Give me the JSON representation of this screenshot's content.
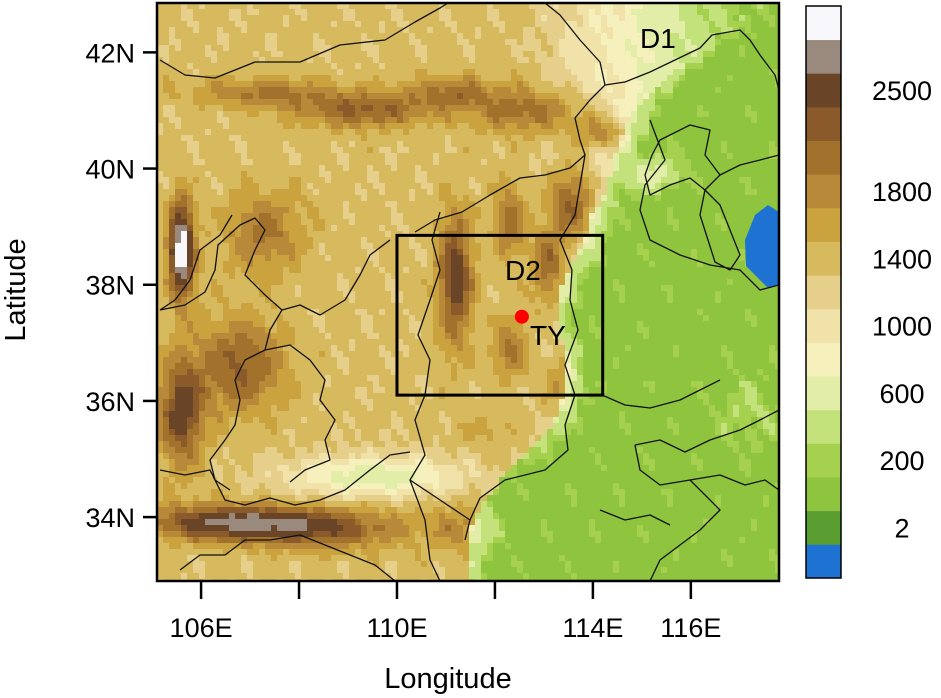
{
  "axes": {
    "xlabel": "Longitude",
    "ylabel": "Latitude",
    "x_ticks": [
      {
        "value": 106,
        "label": "106E"
      },
      {
        "value": 108,
        "label": ""
      },
      {
        "value": 110,
        "label": "110E"
      },
      {
        "value": 112,
        "label": ""
      },
      {
        "value": 114,
        "label": "114E"
      },
      {
        "value": 116,
        "label": "116E"
      }
    ],
    "y_ticks": [
      {
        "value": 34,
        "label": "34N"
      },
      {
        "value": 36,
        "label": "36N"
      },
      {
        "value": 38,
        "label": "38N"
      },
      {
        "value": 40,
        "label": "40N"
      },
      {
        "value": 42,
        "label": "42N"
      }
    ],
    "xlim": [
      105.1,
      117.8
    ],
    "ylim": [
      32.9,
      42.85
    ]
  },
  "labels": {
    "d1": "D1",
    "d2": "D2",
    "ty": "TY"
  },
  "domains": {
    "d2_box": {
      "lon_min": 110.0,
      "lon_max": 114.2,
      "lat_min": 36.1,
      "lat_max": 38.85
    }
  },
  "station": {
    "name": "TY",
    "lon": 112.55,
    "lat": 37.45,
    "color": "#ff0000"
  },
  "colorbar": {
    "colors": [
      "#1e73d2",
      "#5a9e32",
      "#8ec43e",
      "#a6d14f",
      "#c3e27c",
      "#e2eda7",
      "#f6f0bc",
      "#f0e2a8",
      "#e6cf8a",
      "#d7b95e",
      "#caa33e",
      "#b9893a",
      "#a2722c",
      "#8a5a2a",
      "#6a4426",
      "#9a8a7e",
      "#f8f8fc"
    ],
    "labels": [
      {
        "index": 1,
        "text": "2"
      },
      {
        "index": 3,
        "text": "200"
      },
      {
        "index": 5,
        "text": "600"
      },
      {
        "index": 7,
        "text": "1000"
      },
      {
        "index": 9,
        "text": "1400"
      },
      {
        "index": 11,
        "text": "1800"
      },
      {
        "index": 14,
        "text": "2500"
      }
    ]
  },
  "terrain": {
    "ridges": [
      {
        "lon": 107.3,
        "lat": 41.3,
        "sx": 1.4,
        "sy": 0.25,
        "h": 1500
      },
      {
        "lon": 109.3,
        "lat": 41.0,
        "sx": 1.3,
        "sy": 0.3,
        "h": 1700
      },
      {
        "lon": 111.1,
        "lat": 41.3,
        "sx": 0.9,
        "sy": 0.3,
        "h": 1500
      },
      {
        "lon": 112.8,
        "lat": 41.0,
        "sx": 1.2,
        "sy": 0.4,
        "h": 1600
      },
      {
        "lon": 114.2,
        "lat": 40.6,
        "sx": 0.6,
        "sy": 0.3,
        "h": 1700
      },
      {
        "lon": 115.2,
        "lat": 39.9,
        "sx": 0.6,
        "sy": 0.3,
        "h": 1400
      },
      {
        "lon": 113.6,
        "lat": 39.4,
        "sx": 0.5,
        "sy": 0.7,
        "h": 1900
      },
      {
        "lon": 112.3,
        "lat": 39.1,
        "sx": 0.3,
        "sy": 0.6,
        "h": 1600
      },
      {
        "lon": 111.2,
        "lat": 38.1,
        "sx": 0.35,
        "sy": 1.1,
        "h": 2000
      },
      {
        "lon": 113.1,
        "lat": 38.3,
        "sx": 0.35,
        "sy": 0.7,
        "h": 1700
      },
      {
        "lon": 112.3,
        "lat": 36.9,
        "sx": 0.35,
        "sy": 0.5,
        "h": 1500
      },
      {
        "lon": 113.3,
        "lat": 36.3,
        "sx": 0.35,
        "sy": 0.6,
        "h": 1400
      },
      {
        "lon": 111.8,
        "lat": 35.5,
        "sx": 0.6,
        "sy": 0.25,
        "h": 1100
      },
      {
        "lon": 105.6,
        "lat": 38.6,
        "sx": 0.25,
        "sy": 0.8,
        "h": 2700
      },
      {
        "lon": 105.6,
        "lat": 35.8,
        "sx": 0.45,
        "sy": 0.9,
        "h": 2000
      },
      {
        "lon": 106.6,
        "lat": 33.9,
        "sx": 1.6,
        "sy": 0.3,
        "h": 2200
      },
      {
        "lon": 108.6,
        "lat": 33.8,
        "sx": 1.6,
        "sy": 0.35,
        "h": 1700
      },
      {
        "lon": 111.3,
        "lat": 33.8,
        "sx": 0.7,
        "sy": 0.4,
        "h": 1300
      },
      {
        "lon": 106.8,
        "lat": 36.6,
        "sx": 0.9,
        "sy": 0.8,
        "h": 1700
      },
      {
        "lon": 107.3,
        "lat": 38.9,
        "sx": 0.8,
        "sy": 0.7,
        "h": 1500
      }
    ]
  }
}
